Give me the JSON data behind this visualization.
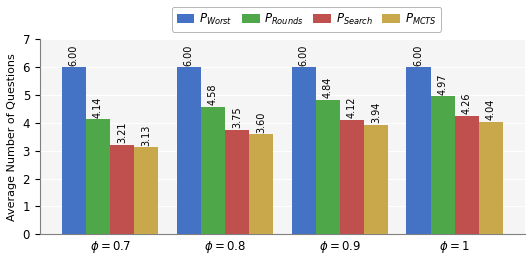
{
  "groups": [
    "$\\phi = 0.7$",
    "$\\phi = 0.8$",
    "$\\phi = 0.9$",
    "$\\phi = 1$"
  ],
  "series": {
    "P_Worst": [
      6.0,
      6.0,
      6.0,
      6.0
    ],
    "P_Rounds": [
      4.14,
      4.58,
      4.84,
      4.97
    ],
    "P_Search": [
      3.21,
      3.75,
      4.12,
      4.26
    ],
    "P_MCTS": [
      3.13,
      3.6,
      3.94,
      4.04
    ]
  },
  "colors": {
    "P_Worst": "#4472C4",
    "P_Rounds": "#4EA84A",
    "P_Search": "#C0504D",
    "P_MCTS": "#C9A84C"
  },
  "legend_labels": [
    "$P_{Worst}$",
    "$P_{Rounds}$",
    "$P_{Search}$",
    "$P_{MCTS}$"
  ],
  "ylabel": "Average Number of Questions",
  "ylim": [
    0,
    7
  ],
  "yticks": [
    0,
    1,
    2,
    3,
    4,
    5,
    6,
    7
  ],
  "bar_width": 0.21,
  "label_fontsize": 7.0,
  "tick_fontsize": 8.5,
  "legend_fontsize": 8.5,
  "bg_color": "#f5f5f5"
}
